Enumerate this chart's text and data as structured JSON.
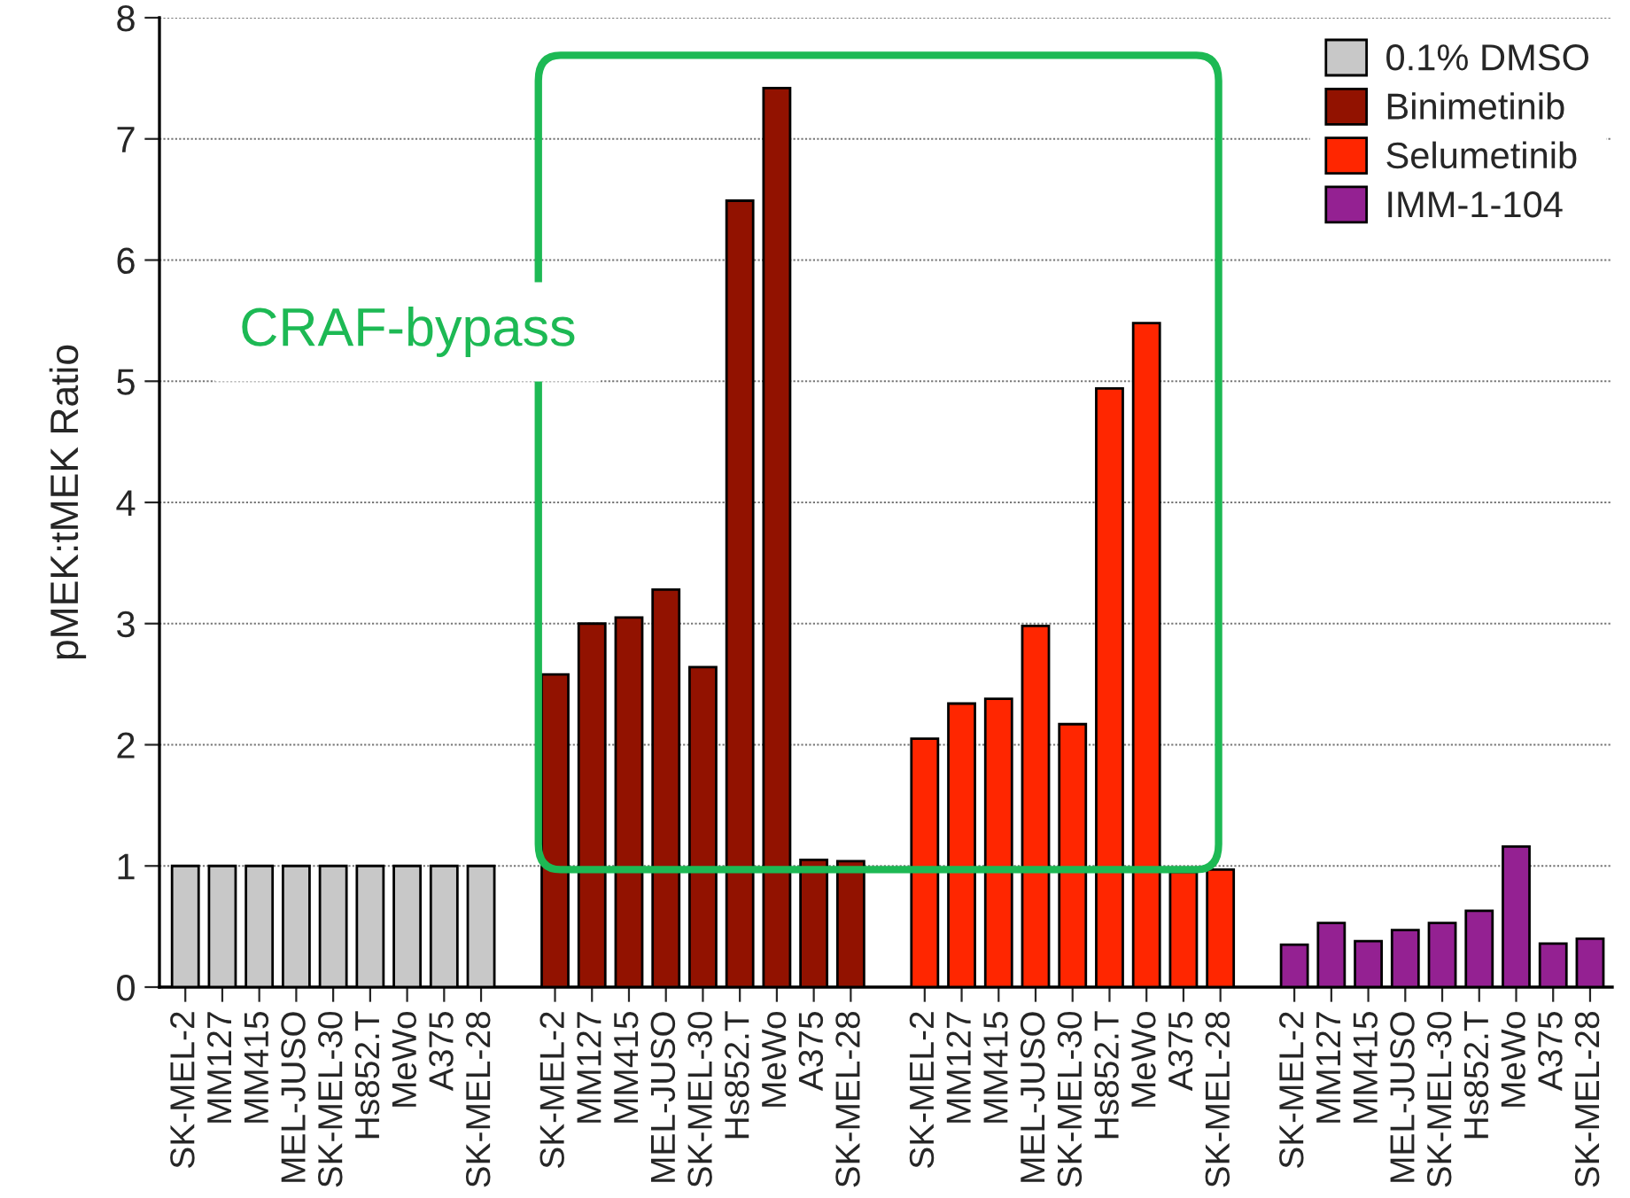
{
  "chart_data": {
    "type": "bar",
    "ylabel": "pMEK:tMEK Ratio",
    "categories": [
      "SK-MEL-2",
      "MM127",
      "MM415",
      "MEL-JUSO",
      "SK-MEL-30",
      "Hs852.T",
      "MeWo",
      "A375",
      "SK-MEL-28",
      null,
      "SK-MEL-2",
      "MM127",
      "MM415",
      "MEL-JUSO",
      "SK-MEL-30",
      "Hs852.T",
      "MeWo",
      "A375",
      "SK-MEL-28",
      null,
      "SK-MEL-2",
      "MM127",
      "MM415",
      "MEL-JUSO",
      "SK-MEL-30",
      "Hs852.T",
      "MeWo",
      "A375",
      "SK-MEL-28",
      null,
      "SK-MEL-2",
      "MM127",
      "MM415",
      "MEL-JUSO",
      "SK-MEL-30",
      "Hs852.T",
      "MeWo",
      "A375",
      "SK-MEL-28"
    ],
    "series": [
      {
        "name": "0.1% DMSO",
        "color": "#c8c8c8",
        "values": [
          1,
          1,
          1,
          1,
          1,
          1,
          1,
          1,
          1,
          null,
          null,
          null,
          null,
          null,
          null,
          null,
          null,
          null,
          null,
          null,
          null,
          null,
          null,
          null,
          null,
          null,
          null,
          null,
          null,
          null,
          null,
          null,
          null,
          null,
          null,
          null,
          null,
          null,
          null
        ]
      },
      {
        "name": "Binimetinib",
        "color": "#921200",
        "values": [
          null,
          null,
          null,
          null,
          null,
          null,
          null,
          null,
          null,
          null,
          2.58,
          3.0,
          3.05,
          3.28,
          2.64,
          6.49,
          7.42,
          1.05,
          1.04,
          null,
          null,
          null,
          null,
          null,
          null,
          null,
          null,
          null,
          null,
          null,
          null,
          null,
          null,
          null,
          null,
          null,
          null,
          null,
          null
        ]
      },
      {
        "name": "Selumetinib",
        "color": "#ff2600",
        "values": [
          null,
          null,
          null,
          null,
          null,
          null,
          null,
          null,
          null,
          null,
          null,
          null,
          null,
          null,
          null,
          null,
          null,
          null,
          null,
          null,
          2.05,
          2.34,
          2.38,
          2.98,
          2.17,
          4.94,
          5.48,
          0.95,
          0.97,
          null,
          null,
          null,
          null,
          null,
          null,
          null,
          null,
          null,
          null
        ]
      },
      {
        "name": "IMM-1-104",
        "color": "#942192",
        "values": [
          null,
          null,
          null,
          null,
          null,
          null,
          null,
          null,
          null,
          null,
          null,
          null,
          null,
          null,
          null,
          null,
          null,
          null,
          null,
          null,
          null,
          null,
          null,
          null,
          null,
          null,
          null,
          null,
          null,
          null,
          0.35,
          0.53,
          0.38,
          0.47,
          0.53,
          0.63,
          1.16,
          0.36,
          0.4
        ]
      }
    ],
    "ylim": [
      0,
      8
    ],
    "yticks": [
      0,
      1,
      2,
      3,
      4,
      5,
      6,
      7,
      8
    ],
    "grid": "y",
    "legend": "top right",
    "annotations": [
      "CRAF-bypass"
    ]
  }
}
